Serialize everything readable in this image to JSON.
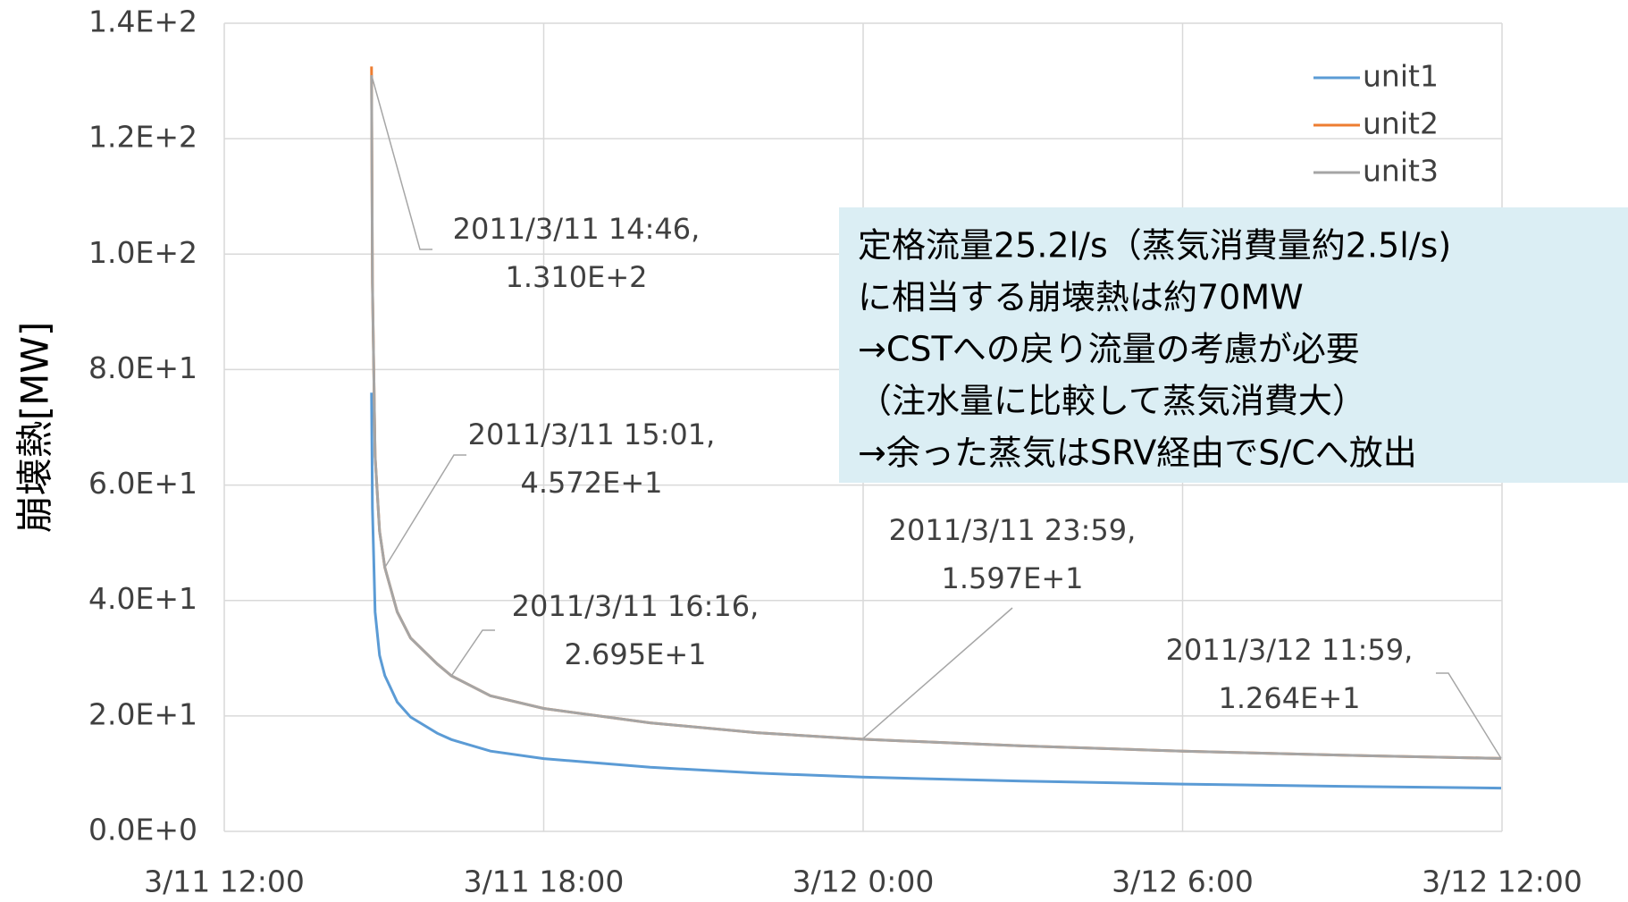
{
  "chart_data": {
    "type": "line",
    "y_label": "崩壊熱[MW]",
    "xlim": [
      "2011-03-11T12:00",
      "2011-03-12T12:00"
    ],
    "xticks": [
      {
        "value": "2011-03-11T12:00",
        "label": "3/11 12:00"
      },
      {
        "value": "2011-03-11T18:00",
        "label": "3/11 18:00"
      },
      {
        "value": "2011-03-12T00:00",
        "label": "3/12 0:00"
      },
      {
        "value": "2011-03-12T06:00",
        "label": "3/12 6:00"
      },
      {
        "value": "2011-03-12T12:00",
        "label": "3/12 12:00"
      }
    ],
    "ylim": [
      0,
      140
    ],
    "yticks": [
      {
        "value": 0,
        "label": "0.0E+0"
      },
      {
        "value": 20,
        "label": "2.0E+1"
      },
      {
        "value": 40,
        "label": "4.0E+1"
      },
      {
        "value": 60,
        "label": "6.0E+1"
      },
      {
        "value": 80,
        "label": "8.0E+1"
      },
      {
        "value": 100,
        "label": "1.0E+2"
      },
      {
        "value": 120,
        "label": "1.2E+2"
      },
      {
        "value": 140,
        "label": "1.4E+2"
      }
    ],
    "grid": true,
    "x": [
      "2011-03-11T14:46",
      "2011-03-11T14:47",
      "2011-03-11T14:50",
      "2011-03-11T14:55",
      "2011-03-11T15:01",
      "2011-03-11T15:15",
      "2011-03-11T15:30",
      "2011-03-11T16:00",
      "2011-03-11T16:16",
      "2011-03-11T17:00",
      "2011-03-11T18:00",
      "2011-03-11T20:00",
      "2011-03-11T22:00",
      "2011-03-11T23:59",
      "2011-03-12T03:00",
      "2011-03-12T06:00",
      "2011-03-12T09:00",
      "2011-03-12T11:59"
    ],
    "series": [
      {
        "name": "unit1",
        "color": "#5b9bd5",
        "values": [
          76,
          56,
          38,
          30.5,
          27,
          22.4,
          19.8,
          17,
          15.9,
          13.9,
          12.6,
          11.1,
          10.1,
          9.4,
          8.7,
          8.2,
          7.8,
          7.5
        ]
      },
      {
        "name": "unit2",
        "color": "#ed7d31",
        "values": [
          132.5,
          95,
          65,
          52,
          45.72,
          38,
          33.5,
          29,
          26.95,
          23.5,
          21.3,
          18.8,
          17.1,
          15.97,
          14.8,
          13.9,
          13.2,
          12.64
        ]
      },
      {
        "name": "unit3",
        "color": "#a5a5a5",
        "values": [
          131,
          95,
          65,
          52,
          45.72,
          38,
          33.5,
          29,
          26.95,
          23.5,
          21.3,
          18.8,
          17.1,
          15.97,
          14.8,
          13.9,
          13.2,
          12.64
        ]
      }
    ],
    "annotations": [
      {
        "x": "2011-03-11T14:46",
        "y": 131,
        "lines": [
          "2011/3/11 14:46,",
          "1.310E+2"
        ]
      },
      {
        "x": "2011-03-11T15:01",
        "y": 45.72,
        "lines": [
          "2011/3/11 15:01,",
          "4.572E+1"
        ]
      },
      {
        "x": "2011-03-11T16:16",
        "y": 26.95,
        "lines": [
          "2011/3/11 16:16,",
          "2.695E+1"
        ]
      },
      {
        "x": "2011-03-11T23:59",
        "y": 15.97,
        "lines": [
          "2011/3/11 23:59,",
          "1.597E+1"
        ]
      },
      {
        "x": "2011-03-12T11:59",
        "y": 12.64,
        "lines": [
          "2011/3/12 11:59,",
          "1.264E+1"
        ]
      }
    ],
    "note_lines": [
      "定格流量25.2l/s（蒸気消費量約2.5l/s)",
      "に相当する崩壊熱は約70MW",
      "→CSTへの戻り流量の考慮が必要",
      "（注水量に比較して蒸気消費大）",
      "→余った蒸気はSRV経由でS/Cへ放出"
    ]
  }
}
